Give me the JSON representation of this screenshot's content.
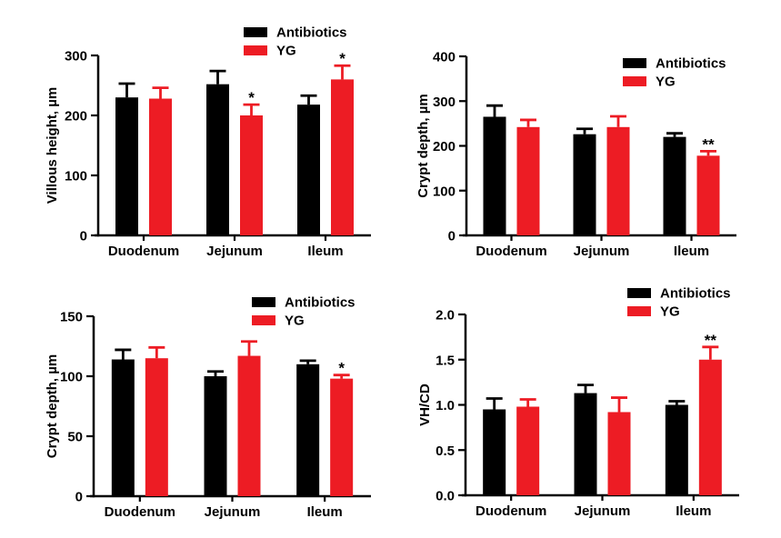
{
  "figure": {
    "background": "#ffffff",
    "axis_color": "#000000",
    "significance_color": "#000000"
  },
  "chart_data": [
    {
      "type": "bar",
      "title": "",
      "xlabel": "",
      "ylabel": "Villous height, µm",
      "categories": [
        "Duodenum",
        "Jejunum",
        "Ileum"
      ],
      "ylim": [
        0,
        300
      ],
      "yticks": [
        0,
        100,
        200,
        300
      ],
      "ytick_labels": [
        "0",
        "100",
        "200",
        "300"
      ],
      "grid": false,
      "legend_position": "top-right",
      "series": [
        {
          "name": "Antibiotics",
          "color": "#000000",
          "values": [
            230,
            252,
            218
          ],
          "errors_plus": [
            23,
            22,
            15
          ],
          "significance": [
            "",
            "",
            ""
          ]
        },
        {
          "name": "YG",
          "color": "#ED1C24",
          "values": [
            228,
            200,
            260
          ],
          "errors_plus": [
            18,
            18,
            23
          ],
          "significance": [
            "",
            "*",
            "*"
          ]
        }
      ]
    },
    {
      "type": "bar",
      "title": "",
      "xlabel": "",
      "ylabel": "Crypt depth, µm",
      "categories": [
        "Duodenum",
        "Jejunum",
        "Ileum"
      ],
      "ylim": [
        0,
        400
      ],
      "yticks": [
        0,
        100,
        200,
        300,
        400
      ],
      "ytick_labels": [
        "0",
        "100",
        "200",
        "300",
        "400"
      ],
      "grid": false,
      "legend_position": "top-right",
      "series": [
        {
          "name": "Antibiotics",
          "color": "#000000",
          "values": [
            265,
            226,
            220
          ],
          "errors_plus": [
            25,
            12,
            8
          ],
          "significance": [
            "",
            "",
            ""
          ]
        },
        {
          "name": "YG",
          "color": "#ED1C24",
          "values": [
            242,
            242,
            178
          ],
          "errors_plus": [
            16,
            24,
            10
          ],
          "significance": [
            "",
            "",
            "**"
          ]
        }
      ]
    },
    {
      "type": "bar",
      "title": "",
      "xlabel": "",
      "ylabel": "Crypt depth, µm",
      "categories": [
        "Duodenum",
        "Jejunum",
        "Ileum"
      ],
      "ylim": [
        0,
        150
      ],
      "yticks": [
        0,
        50,
        100,
        150
      ],
      "ytick_labels": [
        "0",
        "50",
        "100",
        "150"
      ],
      "grid": false,
      "legend_position": "top-right",
      "series": [
        {
          "name": "Antibiotics",
          "color": "#000000",
          "values": [
            114,
            100,
            110
          ],
          "errors_plus": [
            8,
            4,
            3
          ],
          "significance": [
            "",
            "",
            ""
          ]
        },
        {
          "name": "YG",
          "color": "#ED1C24",
          "values": [
            115,
            117,
            98
          ],
          "errors_plus": [
            9,
            12,
            3
          ],
          "significance": [
            "",
            "",
            "*"
          ]
        }
      ]
    },
    {
      "type": "bar",
      "title": "",
      "xlabel": "",
      "ylabel": "VH/CD",
      "categories": [
        "Duodenum",
        "Jejunum",
        "Ileum"
      ],
      "ylim": [
        0,
        2
      ],
      "yticks": [
        0,
        0.5,
        1,
        1.5,
        2
      ],
      "ytick_labels": [
        "0.0",
        "0.5",
        "1.0",
        "1.5",
        "2.0"
      ],
      "grid": false,
      "legend_position": "top-right",
      "series": [
        {
          "name": "Antibiotics",
          "color": "#000000",
          "values": [
            0.95,
            1.13,
            1.0
          ],
          "errors_plus": [
            0.12,
            0.09,
            0.04
          ],
          "significance": [
            "",
            "",
            ""
          ]
        },
        {
          "name": "YG",
          "color": "#ED1C24",
          "values": [
            0.98,
            0.92,
            1.5
          ],
          "errors_plus": [
            0.08,
            0.16,
            0.14
          ],
          "significance": [
            "",
            "",
            "**"
          ]
        }
      ]
    }
  ]
}
